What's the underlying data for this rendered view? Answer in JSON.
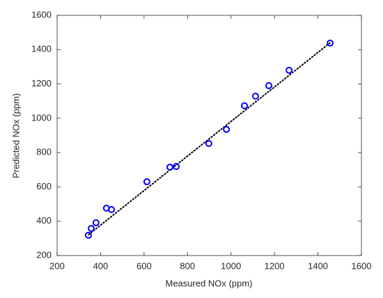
{
  "chart_data": {
    "type": "scatter",
    "x_label": "Measured NOx (ppm)",
    "y_label": "Predicted NOx (ppm)",
    "x": [
      344,
      357,
      379,
      427,
      450,
      613,
      719,
      748,
      898,
      979,
      1062,
      1113,
      1174,
      1267,
      1456
    ],
    "y": [
      318,
      358,
      391,
      476,
      468,
      630,
      715,
      719,
      853,
      935,
      1073,
      1129,
      1190,
      1280,
      1438
    ],
    "color": "#0000ff",
    "line": {
      "x": [
        345,
        1456
      ],
      "y": [
        322,
        1440
      ],
      "color": "#000000"
    },
    "xlim": [
      200,
      1600
    ],
    "ylim": [
      200,
      1600
    ],
    "xticks": [
      200,
      400,
      600,
      800,
      1000,
      1200,
      1400,
      1600
    ],
    "yticks": [
      200,
      400,
      600,
      800,
      1000,
      1200,
      1400,
      1600
    ]
  }
}
